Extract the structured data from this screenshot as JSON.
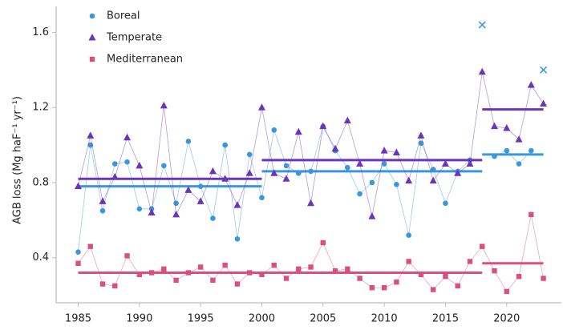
{
  "chart_data": {
    "type": "line",
    "ylabel": "AGB loss (Mg haF⁻¹ yr⁻¹)",
    "x": [
      1985,
      1986,
      1987,
      1988,
      1989,
      1990,
      1991,
      1992,
      1993,
      1994,
      1995,
      1996,
      1997,
      1998,
      1999,
      2000,
      2001,
      2002,
      2003,
      2004,
      2005,
      2006,
      2007,
      2008,
      2009,
      2010,
      2011,
      2012,
      2013,
      2014,
      2015,
      2016,
      2017,
      2018,
      2019,
      2020,
      2021,
      2022,
      2023
    ],
    "series": [
      {
        "name": "Boreal",
        "color": "#3b97dc",
        "marker": "circle",
        "values": [
          0.43,
          1.0,
          0.65,
          0.9,
          0.91,
          0.66,
          0.66,
          0.89,
          0.69,
          1.02,
          0.78,
          0.61,
          1.0,
          0.5,
          0.95,
          0.72,
          1.08,
          0.89,
          0.85,
          0.86,
          1.1,
          0.97,
          0.88,
          0.74,
          0.8,
          0.9,
          0.79,
          0.52,
          1.01,
          0.87,
          0.69,
          0.86,
          0.92,
          null,
          0.94,
          0.97,
          0.9,
          0.97,
          null
        ],
        "outliers": {
          "x": [
            2018,
            2023
          ],
          "values": [
            1.64,
            1.4
          ]
        },
        "means": [
          {
            "start": 1985,
            "end": 2000,
            "value": 0.78
          },
          {
            "start": 2000,
            "end": 2018,
            "value": 0.86
          },
          {
            "start": 2018,
            "end": 2023,
            "value": 0.95
          }
        ]
      },
      {
        "name": "Temperate",
        "color": "#6b35b8",
        "marker": "triangle",
        "values": [
          0.78,
          1.05,
          0.7,
          0.83,
          1.04,
          0.89,
          0.64,
          1.21,
          0.63,
          0.76,
          0.7,
          0.86,
          0.82,
          0.68,
          0.85,
          1.2,
          0.85,
          0.82,
          1.07,
          0.69,
          1.1,
          0.98,
          1.13,
          0.9,
          0.62,
          0.97,
          0.96,
          0.81,
          1.05,
          0.81,
          0.9,
          0.85,
          0.9,
          1.39,
          1.1,
          1.09,
          1.03,
          1.32,
          1.22
        ],
        "means": [
          {
            "start": 1985,
            "end": 2000,
            "value": 0.82
          },
          {
            "start": 2000,
            "end": 2018,
            "value": 0.92
          },
          {
            "start": 2018,
            "end": 2023,
            "value": 1.19
          }
        ]
      },
      {
        "name": "Mediterranean",
        "color": "#d9507f",
        "marker": "square",
        "values": [
          0.37,
          0.46,
          0.26,
          0.25,
          0.41,
          0.31,
          0.32,
          0.34,
          0.28,
          0.32,
          0.35,
          0.28,
          0.36,
          0.26,
          0.32,
          0.31,
          0.36,
          0.29,
          0.34,
          0.35,
          0.48,
          0.33,
          0.34,
          0.29,
          0.24,
          0.24,
          0.27,
          0.38,
          0.31,
          0.23,
          0.3,
          0.25,
          0.38,
          0.46,
          0.33,
          0.22,
          0.3,
          0.63,
          0.29
        ],
        "means": [
          {
            "start": 1985,
            "end": 2000,
            "value": 0.32
          },
          {
            "start": 2000,
            "end": 2018,
            "value": 0.32
          },
          {
            "start": 2018,
            "end": 2023,
            "value": 0.37
          }
        ]
      }
    ],
    "xlim": [
      1983.2,
      2024.6
    ],
    "xticks": [
      1985,
      1990,
      1995,
      2000,
      2005,
      2010,
      2015,
      2020
    ],
    "ylim": [
      0.16,
      1.73
    ],
    "yticks": [
      0.4,
      0.8,
      1.2,
      1.6
    ],
    "grid": false,
    "legend": "upper left"
  }
}
